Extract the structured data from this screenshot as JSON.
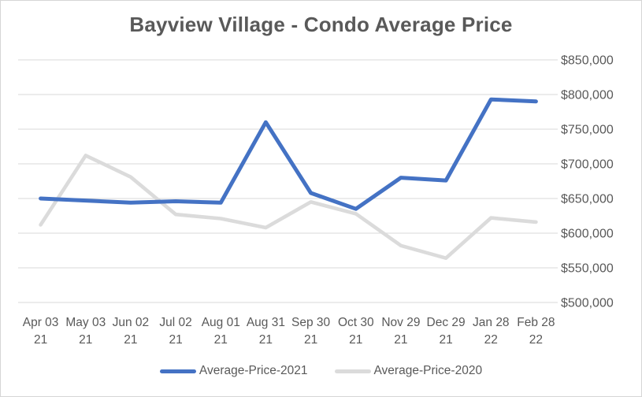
{
  "window": {
    "background": "#FFFFFF",
    "border_color": "#D6D6D6"
  },
  "chart_data": {
    "type": "line",
    "title": "Bayview Village - Condo Average Price",
    "title_color": "#595959",
    "text_color": "#595959",
    "gridline_color": "#D9D9D9",
    "grid": true,
    "legend_position": "bottom",
    "x_tick_labels": [
      {
        "date": "Apr 03",
        "year": "21"
      },
      {
        "date": "May 03",
        "year": "21"
      },
      {
        "date": "Jun 02",
        "year": "21"
      },
      {
        "date": "Jul 02",
        "year": "21"
      },
      {
        "date": "Aug 01",
        "year": "21"
      },
      {
        "date": "Aug 31",
        "year": "21"
      },
      {
        "date": "Sep 30",
        "year": "21"
      },
      {
        "date": "Oct 30",
        "year": "21"
      },
      {
        "date": "Nov 29",
        "year": "21"
      },
      {
        "date": "Dec 29",
        "year": "21"
      },
      {
        "date": "Jan 28",
        "year": "22"
      },
      {
        "date": "Feb 28",
        "year": "22"
      }
    ],
    "y_axis": {
      "side": "right",
      "min": 500000,
      "max": 850000,
      "step": 50000,
      "tick_labels": [
        "$500,000",
        "$550,000",
        "$600,000",
        "$650,000",
        "$700,000",
        "$750,000",
        "$800,000",
        "$850,000"
      ]
    },
    "series": [
      {
        "name": "Average-Price-2021",
        "color": "#4472C4",
        "values": [
          650000,
          647000,
          644000,
          646000,
          644000,
          760000,
          658000,
          635000,
          680000,
          676000,
          793000,
          790000
        ]
      },
      {
        "name": "Average-Price-2020",
        "color": "#DBDBDB",
        "values": [
          612000,
          712000,
          681000,
          627000,
          621000,
          608000,
          645000,
          628000,
          582000,
          564000,
          622000,
          616000
        ]
      }
    ]
  }
}
